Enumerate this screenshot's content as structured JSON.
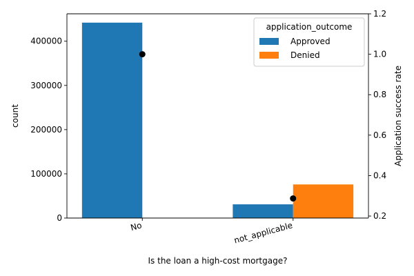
{
  "chart_data": {
    "type": "bar",
    "xlabel": "Is the loan a high-cost mortgage?",
    "ylabel": "count",
    "y2label": "Application success rate",
    "categories": [
      "No",
      "not_applicable"
    ],
    "series": [
      {
        "name": "Approved",
        "values": [
          442000,
          31000
        ],
        "color": "#1f77b4"
      },
      {
        "name": "Denied",
        "values": [
          0,
          76000
        ],
        "color": "#ff7f0e"
      }
    ],
    "ylim": [
      0,
      462000
    ],
    "yticks": [
      0,
      100000,
      200000,
      300000,
      400000
    ],
    "ytick_labels": [
      "0",
      "100000",
      "200000",
      "300000",
      "400000"
    ],
    "overlay": {
      "type": "scatter",
      "axis": "right",
      "values": [
        1.0,
        0.287
      ],
      "color": "#000000"
    },
    "y2lim": [
      0.19,
      1.2
    ],
    "y2ticks": [
      0.2,
      0.4,
      0.6,
      0.8,
      1.0,
      1.2
    ],
    "y2tick_labels": [
      "0.2",
      "0.4",
      "0.6",
      "0.8",
      "1.0",
      "1.2"
    ],
    "legend": {
      "title": "application_outcome",
      "placement": "top-right",
      "entries": [
        "Approved",
        "Denied"
      ]
    },
    "grid": false
  }
}
